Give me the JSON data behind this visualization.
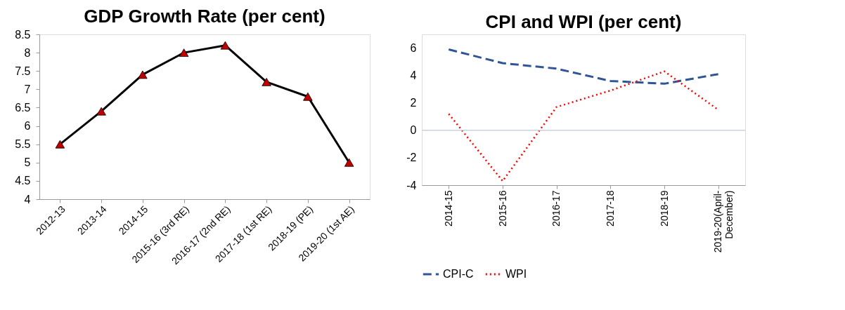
{
  "chart_data": [
    {
      "type": "line",
      "title": "GDP Growth Rate (per cent)",
      "categories": [
        "2012-13",
        "2013-14",
        "2014-15",
        "2015-16 (3rd RE)",
        "2016-17 (2nd RE)",
        "2017-18 (1st RE)",
        "2018-19 (PE)",
        "2019-20 (1st AE)"
      ],
      "series": [
        {
          "color": "#000000",
          "colors": [
            "#c00000",
            "#c00000",
            "#c00000",
            "#c00000",
            "#c00000",
            "#c00000",
            "#c00000",
            "#c00000"
          ],
          "values": [
            5.5,
            6.4,
            7.4,
            8.0,
            8.2,
            7.2,
            6.8,
            5.0
          ]
        }
      ],
      "ylim": [
        4,
        8.5
      ],
      "yticks": [
        4,
        4.5,
        5,
        5.5,
        6,
        6.5,
        7,
        7.5,
        8,
        8.5
      ],
      "marker": "triangle",
      "line_style": "solid",
      "grid": false,
      "legend": false
    },
    {
      "type": "line",
      "title": "CPI and WPI (per cent)",
      "categories": [
        "2014-15",
        "2015-16",
        "2016-17",
        "2017-18",
        "2018-19",
        "2019-20(April-December)"
      ],
      "series": [
        {
          "name": "CPI-C",
          "color": "#2f5597",
          "line_style": "dashed",
          "values": [
            5.9,
            4.9,
            4.5,
            3.6,
            3.4,
            4.1
          ]
        },
        {
          "name": "WPI",
          "color": "#ff0000",
          "line_style": "dotted",
          "values": [
            1.2,
            -3.7,
            1.7,
            2.9,
            4.3,
            1.5
          ]
        }
      ],
      "ylim": [
        -4,
        7
      ],
      "yticks": [
        -4,
        -2,
        0,
        2,
        4,
        6
      ],
      "marker": "none",
      "grid": false,
      "legend": "bottom",
      "ref_lines": [
        {
          "axis": "y",
          "value": 0,
          "color": "#c8d3de"
        }
      ]
    }
  ]
}
